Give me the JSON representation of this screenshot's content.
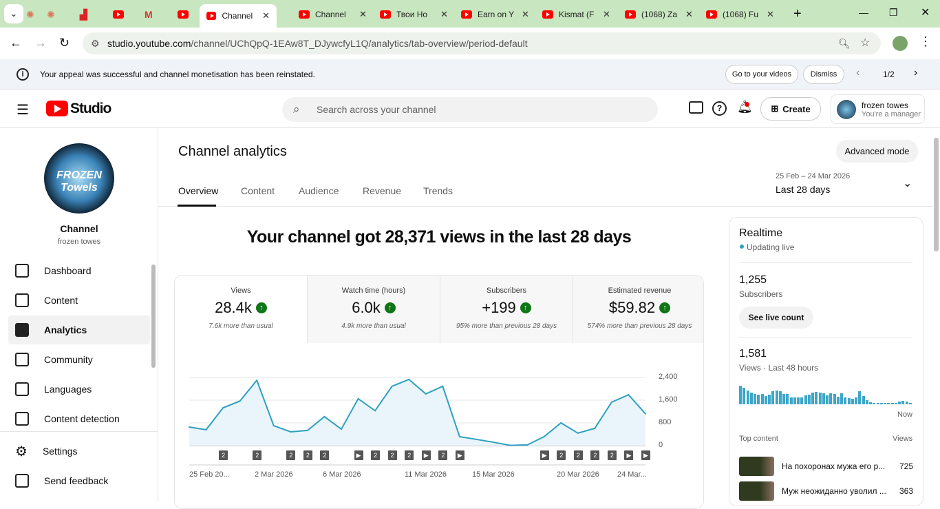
{
  "browser": {
    "tabs": [
      {
        "title": "",
        "icon": "sparkle-icon"
      },
      {
        "title": "",
        "icon": "sparkle-icon"
      },
      {
        "title": "",
        "icon": "image-icon"
      },
      {
        "title": "",
        "icon": "youtube-icon"
      },
      {
        "title": "",
        "icon": "gmail-icon"
      },
      {
        "title": "",
        "icon": "youtube-icon"
      },
      {
        "title": "Channel",
        "icon": "youtube-icon",
        "active": true
      },
      {
        "title": "Channel",
        "icon": "youtube-icon"
      },
      {
        "title": "Твои Но",
        "icon": "youtube-icon"
      },
      {
        "title": "Earn on Y",
        "icon": "youtube-icon"
      },
      {
        "title": "Kismat (F",
        "icon": "youtube-icon"
      },
      {
        "title": "(1068) Za",
        "icon": "youtube-icon"
      },
      {
        "title": "(1068) Fu",
        "icon": "youtube-icon"
      }
    ],
    "url_host": "studio.youtube.com",
    "url_path": "/channel/UChQpQ-1EAw8T_DJywcfyL1Q/analytics/tab-overview/period-default"
  },
  "banner": {
    "message": "Your appeal was successful and channel monetisation has been reinstated.",
    "go_label": "Go to your videos",
    "dismiss_label": "Dismiss",
    "page": "1/2"
  },
  "header": {
    "logo": "Studio",
    "search_placeholder": "Search across your channel",
    "create_label": "Create",
    "account_name": "frozen towes",
    "account_role": "You're a manager"
  },
  "sidebar": {
    "channel_label": "Channel",
    "channel_name": "frozen towes",
    "avatar_text": "FROZEN Towels",
    "items": [
      {
        "label": "Dashboard"
      },
      {
        "label": "Content"
      },
      {
        "label": "Analytics",
        "selected": true
      },
      {
        "label": "Community"
      },
      {
        "label": "Languages"
      },
      {
        "label": "Content detection"
      }
    ],
    "settings_label": "Settings",
    "feedback_label": "Send feedback"
  },
  "main": {
    "title": "Channel analytics",
    "advanced_label": "Advanced mode",
    "tabs": [
      "Overview",
      "Content",
      "Audience",
      "Revenue",
      "Trends"
    ],
    "date_range": "25 Feb – 24 Mar 2026",
    "period": "Last 28 days",
    "headline": "Your channel got 28,371 views in the last 28 days",
    "cards": [
      {
        "title": "Views",
        "value": "28.4k",
        "sub": "7.6k more than usual"
      },
      {
        "title": "Watch time (hours)",
        "value": "6.0k",
        "sub": "4.9k more than usual"
      },
      {
        "title": "Subscribers",
        "value": "+199",
        "sub": "95% more than previous 28 days"
      },
      {
        "title": "Estimated revenue",
        "value": "$59.82",
        "sub": "574% more than previous 28 days"
      }
    ]
  },
  "chart_data": {
    "type": "area",
    "color": "#2ea0c0",
    "ylim": [
      0,
      2400
    ],
    "yticks": [
      "0",
      "800",
      "1,600",
      "2,400"
    ],
    "xticks": [
      "25 Feb 20...",
      "2 Mar 2026",
      "6 Mar 2026",
      "11 Mar 2026",
      "15 Mar 2026",
      "20 Mar 2026",
      "24 Mar..."
    ],
    "x": [
      "25 Feb",
      "26 Feb",
      "27 Feb",
      "28 Feb",
      "1 Mar",
      "2 Mar",
      "3 Mar",
      "4 Mar",
      "5 Mar",
      "6 Mar",
      "7 Mar",
      "8 Mar",
      "9 Mar",
      "10 Mar",
      "11 Mar",
      "12 Mar",
      "13 Mar",
      "14 Mar",
      "15 Mar",
      "16 Mar",
      "17 Mar",
      "18 Mar",
      "19 Mar",
      "20 Mar",
      "21 Mar",
      "22 Mar",
      "23 Mar",
      "24 Mar"
    ],
    "values": [
      655,
      560,
      1330,
      1570,
      2300,
      700,
      485,
      535,
      1020,
      580,
      1650,
      1230,
      2090,
      2330,
      1820,
      2090,
      315,
      220,
      120,
      10,
      25,
      315,
      800,
      440,
      610,
      1530,
      1790,
      1120
    ],
    "markers": [
      {
        "day": 2,
        "label": "2"
      },
      {
        "day": 4,
        "label": "2"
      },
      {
        "day": 6,
        "label": "2"
      },
      {
        "day": 7,
        "label": "2"
      },
      {
        "day": 8,
        "label": "2"
      },
      {
        "day": 10,
        "label": "▶"
      },
      {
        "day": 11,
        "label": "2"
      },
      {
        "day": 12,
        "label": "2"
      },
      {
        "day": 13,
        "label": "2"
      },
      {
        "day": 14,
        "label": "▶"
      },
      {
        "day": 15,
        "label": "2"
      },
      {
        "day": 16,
        "label": "▶"
      },
      {
        "day": 21,
        "label": "▶"
      },
      {
        "day": 22,
        "label": "2"
      },
      {
        "day": 23,
        "label": "2"
      },
      {
        "day": 24,
        "label": "2"
      },
      {
        "day": 25,
        "label": "2"
      },
      {
        "day": 26,
        "label": "▶"
      },
      {
        "day": 27,
        "label": "▶"
      }
    ]
  },
  "realtime": {
    "title": "Realtime",
    "status": "Updating live",
    "subs": "1,255",
    "subs_label": "Subscribers",
    "live_btn": "See live count",
    "views": "1,581",
    "views_label": "Views · Last 48 hours",
    "now": "Now",
    "bars": [
      27,
      24,
      20,
      17,
      15,
      14,
      15,
      12,
      14,
      19,
      20,
      19,
      15,
      15,
      10,
      10,
      10,
      10,
      13,
      14,
      17,
      18,
      17,
      16,
      13,
      16,
      15,
      11,
      16,
      10,
      9,
      8,
      10,
      19,
      12,
      6,
      3,
      2,
      2,
      2,
      2,
      2,
      2,
      2,
      4,
      5,
      4,
      2
    ],
    "top_label": "Top content",
    "views_col": "Views",
    "top": [
      {
        "title": "На похоронах мужа его р...",
        "views": "725"
      },
      {
        "title": "Муж неожиданно уволил ...",
        "views": "363"
      }
    ]
  }
}
